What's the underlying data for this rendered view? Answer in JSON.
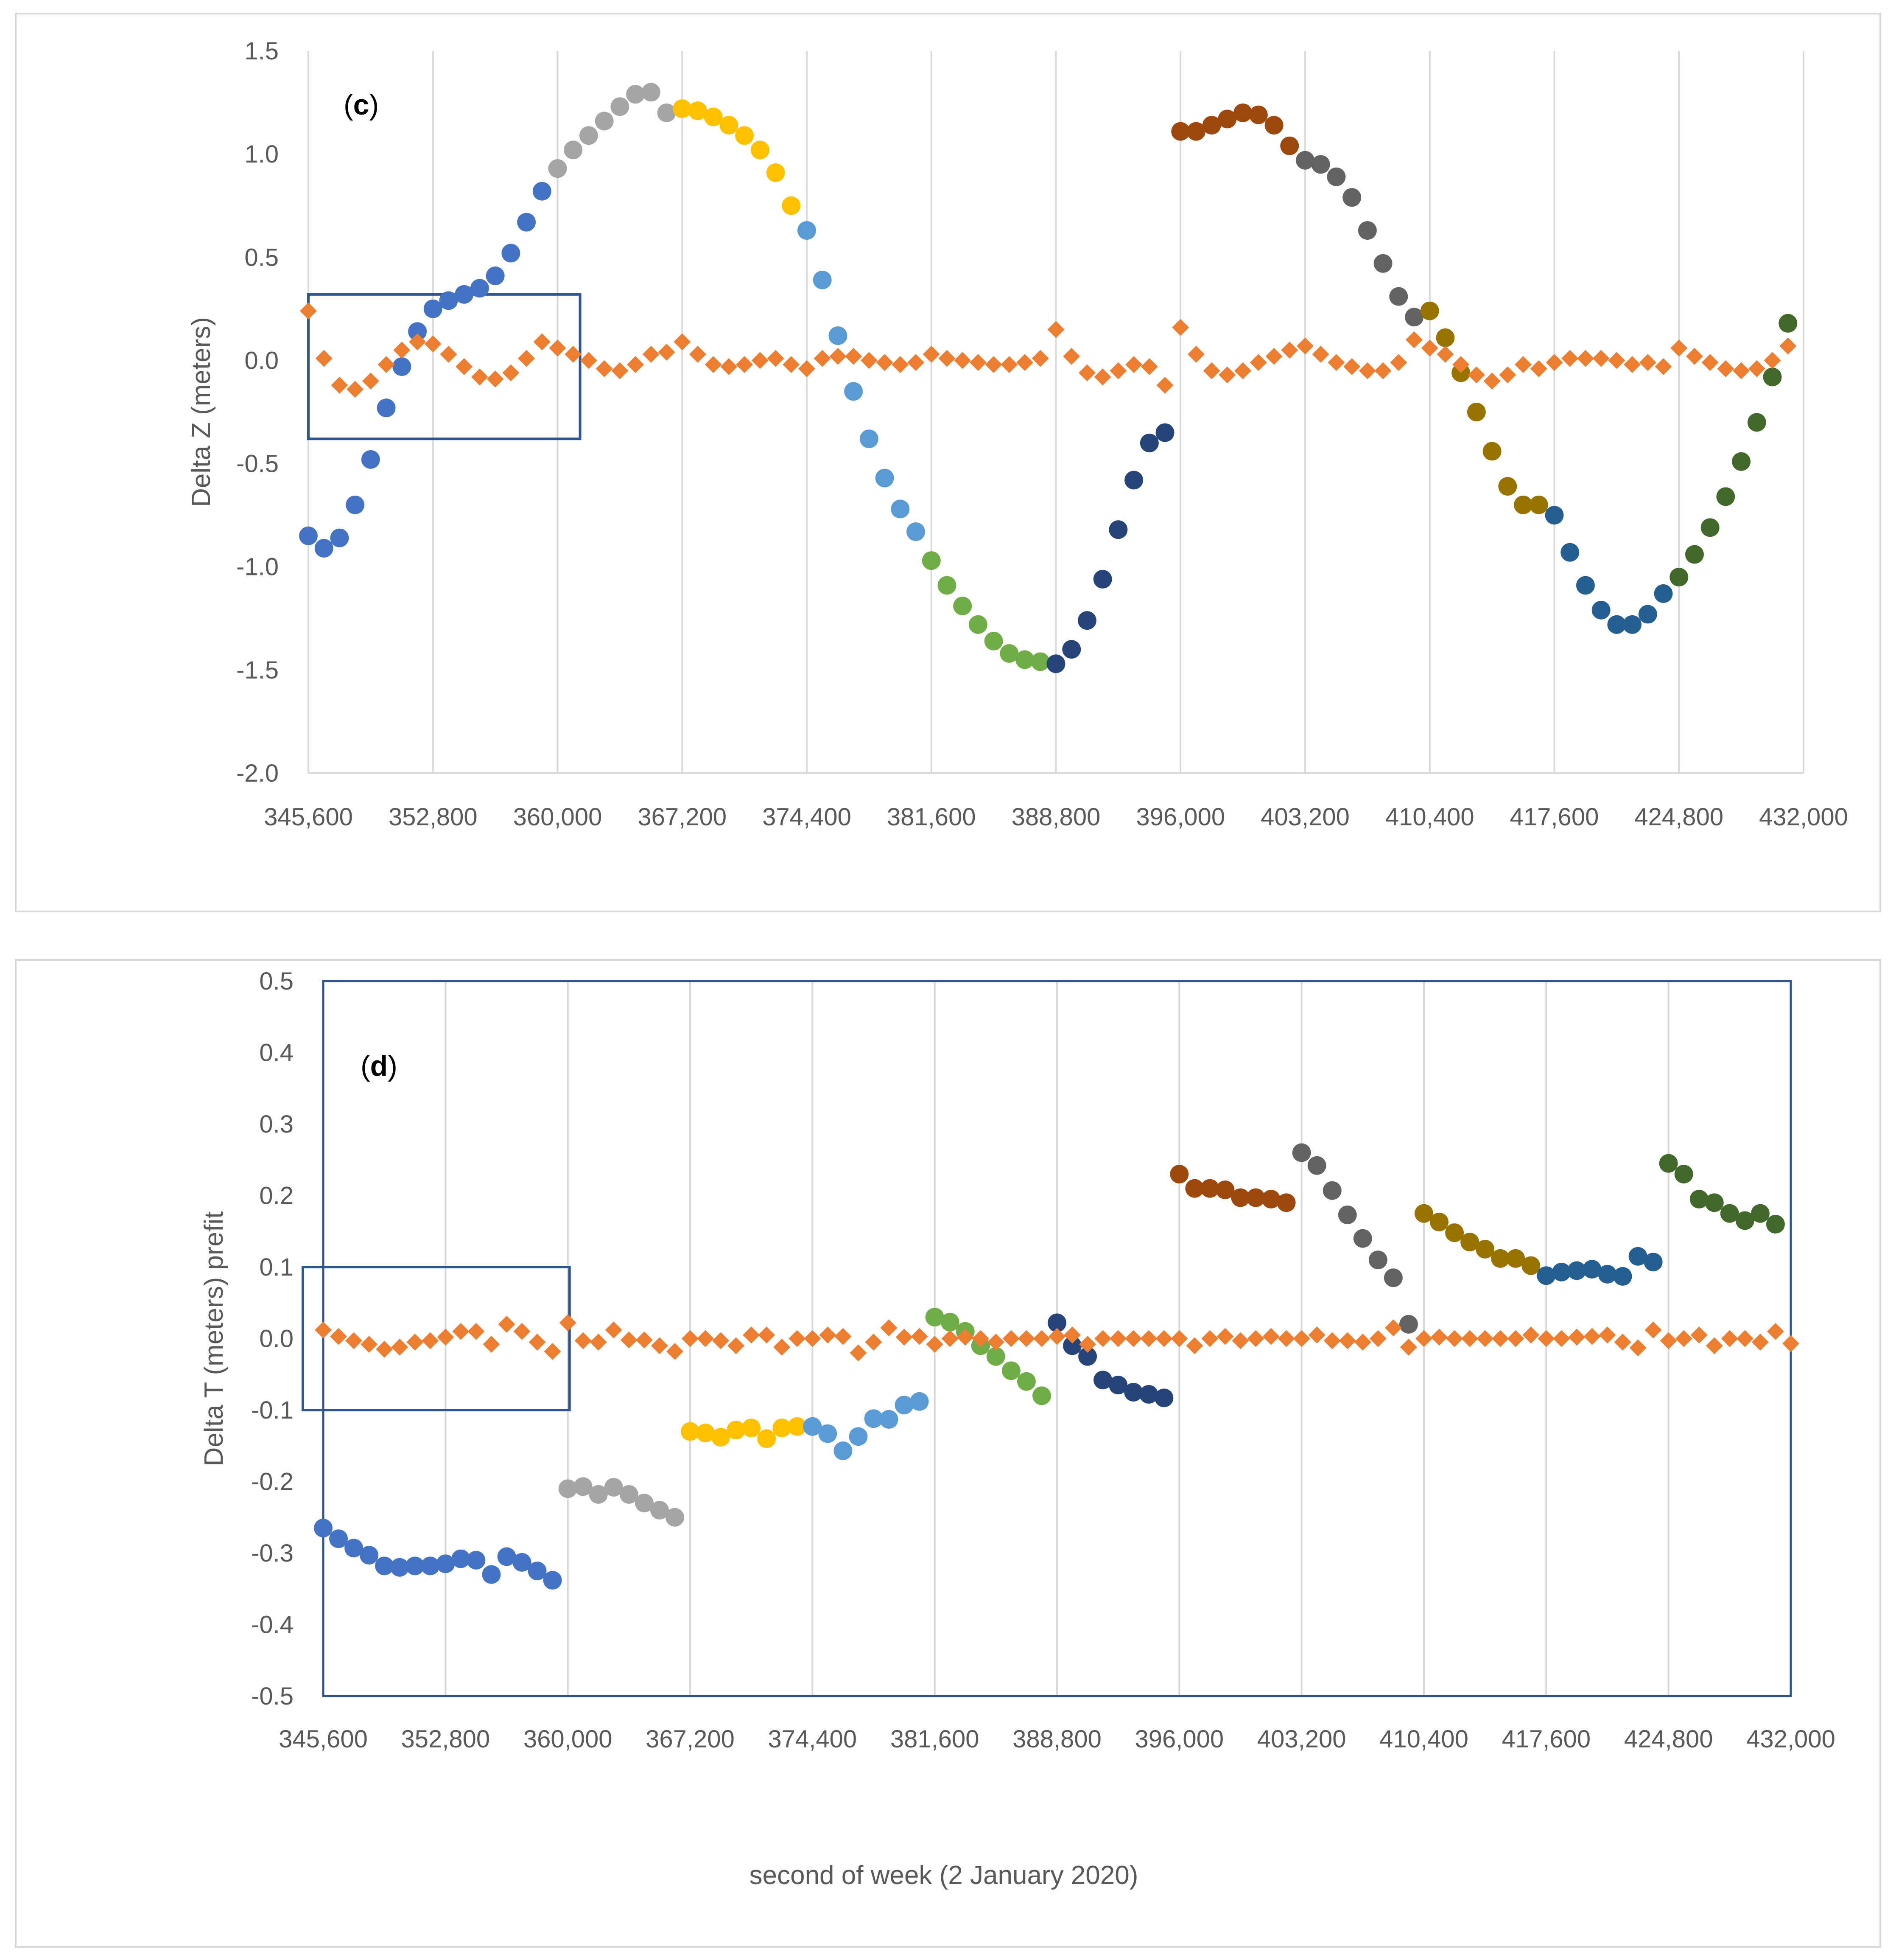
{
  "chart_data": [
    {
      "type": "scatter",
      "panel_label": "(c)",
      "panel_letter": "c",
      "ylabel": "Delta Z (meters)",
      "xlabel": "",
      "xlim": [
        345600,
        432000
      ],
      "ylim": [
        -2.0,
        1.5
      ],
      "x_ticks": [
        345600,
        352800,
        360000,
        367200,
        374400,
        381600,
        388800,
        396000,
        403200,
        410400,
        417600,
        424800,
        432000
      ],
      "x_tick_labels": [
        "345,600",
        "352,800",
        "360,000",
        "367,200",
        "374,400",
        "381,600",
        "388,800",
        "396,000",
        "403,200",
        "410,400",
        "417,600",
        "424,800",
        "432,000"
      ],
      "y_ticks": [
        1.5,
        1.0,
        0.5,
        0.0,
        -0.5,
        -1.0,
        -1.5,
        -2.0
      ],
      "y_tick_labels": [
        "1.5",
        "1.0",
        "0.5",
        "0.0",
        "-0.5",
        "-1.0",
        "-1.5",
        "-2.0"
      ],
      "highlight_box": {
        "x": [
          345600,
          361300
        ],
        "y": [
          -0.38,
          0.32
        ]
      },
      "arc_series": [
        {
          "color": "#4472c4",
          "x0": 345600,
          "values": [
            -0.85,
            -0.91,
            -0.86,
            -0.7,
            -0.48,
            -0.23,
            -0.03,
            0.14,
            0.25,
            0.29,
            0.32,
            0.35,
            0.41,
            0.52,
            0.67,
            0.82
          ]
        },
        {
          "color": "#a5a5a5",
          "x0": 360000,
          "values": [
            0.93,
            1.02,
            1.09,
            1.16,
            1.23,
            1.29,
            1.3,
            1.2
          ]
        },
        {
          "color": "#ffc000",
          "x0": 367200,
          "values": [
            1.22,
            1.21,
            1.18,
            1.14,
            1.09,
            1.02,
            0.91,
            0.75
          ]
        },
        {
          "color": "#5b9bd5",
          "x0": 374400,
          "values": [
            0.63,
            0.39,
            0.12,
            -0.15,
            -0.38,
            -0.57,
            -0.72,
            -0.83
          ]
        },
        {
          "color": "#70ad47",
          "x0": 381600,
          "values": [
            -0.97,
            -1.09,
            -1.19,
            -1.28,
            -1.36,
            -1.42,
            -1.45,
            -1.46
          ]
        },
        {
          "color": "#264478",
          "x0": 388800,
          "values": [
            -1.47,
            -1.4,
            -1.26,
            -1.06,
            -0.82,
            -0.58,
            -0.4,
            -0.35
          ]
        },
        {
          "color": "#9e480e",
          "x0": 396000,
          "values": [
            1.11,
            1.11,
            1.14,
            1.17,
            1.2,
            1.19,
            1.14,
            1.04
          ]
        },
        {
          "color": "#636363",
          "x0": 403200,
          "values": [
            0.97,
            0.95,
            0.89,
            0.79,
            0.63,
            0.47,
            0.31,
            0.21
          ]
        },
        {
          "color": "#997300",
          "x0": 410400,
          "values": [
            0.24,
            0.11,
            -0.06,
            -0.25,
            -0.44,
            -0.61,
            -0.7,
            -0.7
          ]
        },
        {
          "color": "#255e91",
          "x0": 417600,
          "values": [
            -0.75,
            -0.93,
            -1.09,
            -1.21,
            -1.28,
            -1.28,
            -1.23,
            -1.13
          ]
        },
        {
          "color": "#43682b",
          "x0": 424800,
          "values": [
            -1.05,
            -0.94,
            -0.81,
            -0.66,
            -0.49,
            -0.3,
            -0.08,
            0.18
          ]
        }
      ],
      "residual_series": {
        "color": "#ed7d31",
        "x0": 345600,
        "values": [
          0.24,
          0.01,
          -0.12,
          -0.14,
          -0.1,
          -0.02,
          0.05,
          0.09,
          0.08,
          0.03,
          -0.03,
          -0.08,
          -0.09,
          -0.06,
          0.01,
          0.09,
          0.06,
          0.03,
          0.0,
          -0.04,
          -0.05,
          -0.02,
          0.03,
          0.04,
          0.09,
          0.03,
          -0.02,
          -0.03,
          -0.02,
          0.0,
          0.01,
          -0.02,
          -0.04,
          0.01,
          0.02,
          0.02,
          0.0,
          -0.01,
          -0.02,
          -0.01,
          0.03,
          0.01,
          0.0,
          -0.01,
          -0.02,
          -0.02,
          -0.01,
          0.01,
          0.15,
          0.02,
          -0.06,
          -0.08,
          -0.05,
          -0.02,
          -0.03,
          -0.12,
          0.16,
          0.03,
          -0.05,
          -0.07,
          -0.05,
          -0.01,
          0.02,
          0.05,
          0.07,
          0.03,
          -0.01,
          -0.03,
          -0.05,
          -0.05,
          -0.01,
          0.1,
          0.06,
          0.03,
          -0.02,
          -0.07,
          -0.1,
          -0.07,
          -0.02,
          -0.04,
          -0.01,
          0.01,
          0.01,
          0.01,
          0.0,
          -0.02,
          -0.01,
          -0.03,
          0.06,
          0.02,
          -0.01,
          -0.04,
          -0.05,
          -0.04,
          0.0,
          0.07
        ]
      }
    },
    {
      "type": "scatter",
      "panel_label": "(d)",
      "panel_letter": "d",
      "ylabel": "Delta T (meters) prefit",
      "xlabel": "second of week (2 January 2020)",
      "xlim": [
        345600,
        432000
      ],
      "ylim": [
        -0.5,
        0.5
      ],
      "x_ticks": [
        345600,
        352800,
        360000,
        367200,
        374400,
        381600,
        388800,
        396000,
        403200,
        410400,
        417600,
        424800,
        432000
      ],
      "x_tick_labels": [
        "345,600",
        "352,800",
        "360,000",
        "367,200",
        "374,400",
        "381,600",
        "388,800",
        "396,000",
        "403,200",
        "410,400",
        "417,600",
        "424,800",
        "432,000"
      ],
      "y_ticks": [
        0.5,
        0.4,
        0.3,
        0.2,
        0.1,
        0.0,
        -0.1,
        -0.2,
        -0.3,
        -0.4,
        -0.5
      ],
      "y_tick_labels": [
        "0.5",
        "0.4",
        "0.3",
        "0.2",
        "0.1",
        "0.0",
        "-0.1",
        "-0.2",
        "-0.3",
        "-0.4",
        "-0.5"
      ],
      "highlight_box": {
        "x": [
          344400,
          360100
        ],
        "y": [
          -0.1,
          0.1
        ]
      },
      "arc_series": [
        {
          "color": "#4472c4",
          "x0": 345600,
          "values": [
            -0.265,
            -0.28,
            -0.293,
            -0.303,
            -0.318,
            -0.32,
            -0.318,
            -0.318,
            -0.315,
            -0.308,
            -0.31,
            -0.33,
            -0.305,
            -0.313,
            -0.325,
            -0.338
          ]
        },
        {
          "color": "#a5a5a5",
          "x0": 360000,
          "values": [
            -0.21,
            -0.207,
            -0.218,
            -0.208,
            -0.218,
            -0.23,
            -0.24,
            -0.25
          ]
        },
        {
          "color": "#ffc000",
          "x0": 367200,
          "values": [
            -0.13,
            -0.132,
            -0.138,
            -0.128,
            -0.125,
            -0.14,
            -0.125,
            -0.123
          ]
        },
        {
          "color": "#5b9bd5",
          "x0": 374400,
          "values": [
            -0.123,
            -0.133,
            -0.157,
            -0.137,
            -0.112,
            -0.113,
            -0.093,
            -0.088
          ]
        },
        {
          "color": "#70ad47",
          "x0": 381600,
          "values": [
            0.03,
            0.023,
            0.01,
            -0.01,
            -0.025,
            -0.045,
            -0.06,
            -0.08
          ]
        },
        {
          "color": "#264478",
          "x0": 388800,
          "values": [
            0.022,
            -0.01,
            -0.025,
            -0.058,
            -0.065,
            -0.075,
            -0.078,
            -0.083
          ]
        },
        {
          "color": "#9e480e",
          "x0": 396000,
          "values": [
            0.23,
            0.21,
            0.21,
            0.208,
            0.197,
            0.197,
            0.195,
            0.19
          ]
        },
        {
          "color": "#636363",
          "x0": 403200,
          "values": [
            0.26,
            0.242,
            0.207,
            0.173,
            0.14,
            0.11,
            0.085,
            0.02
          ]
        },
        {
          "color": "#997300",
          "x0": 410400,
          "values": [
            0.175,
            0.163,
            0.148,
            0.135,
            0.125,
            0.112,
            0.112,
            0.102
          ]
        },
        {
          "color": "#255e91",
          "x0": 417600,
          "values": [
            0.088,
            0.093,
            0.095,
            0.097,
            0.09,
            0.087,
            0.115,
            0.107
          ]
        },
        {
          "color": "#43682b",
          "x0": 424800,
          "values": [
            0.245,
            0.23,
            0.195,
            0.19,
            0.175,
            0.165,
            0.175,
            0.16
          ]
        }
      ],
      "residual_series": {
        "color": "#ed7d31",
        "x0": 345600,
        "values": [
          0.012,
          0.003,
          -0.003,
          -0.008,
          -0.015,
          -0.012,
          -0.005,
          -0.003,
          0.002,
          0.01,
          0.01,
          -0.008,
          0.02,
          0.01,
          -0.005,
          -0.018,
          0.022,
          -0.003,
          -0.005,
          0.012,
          -0.002,
          -0.002,
          -0.01,
          -0.018,
          0.0,
          0.0,
          -0.003,
          -0.01,
          0.005,
          0.005,
          -0.012,
          0.0,
          0.0,
          0.005,
          0.003,
          -0.02,
          -0.005,
          0.015,
          0.002,
          0.003,
          -0.008,
          0.0,
          0.002,
          0.0,
          -0.005,
          0.0,
          0.0,
          0.0,
          0.003,
          0.005,
          -0.008,
          0.0,
          0.0,
          0.0,
          0.0,
          0.0,
          0.0,
          -0.01,
          0.0,
          0.003,
          -0.003,
          0.0,
          0.003,
          0.0,
          0.0,
          0.005,
          -0.003,
          -0.003,
          -0.005,
          0.0,
          0.015,
          -0.012,
          0.0,
          0.002,
          0.0,
          0.0,
          0.0,
          0.0,
          0.0,
          0.005,
          0.0,
          0.0,
          0.002,
          0.003,
          0.005,
          -0.005,
          -0.013,
          0.012,
          -0.003,
          0.0,
          0.005,
          -0.01,
          0.0,
          0.0,
          -0.005,
          0.01,
          -0.007
        ]
      }
    }
  ]
}
